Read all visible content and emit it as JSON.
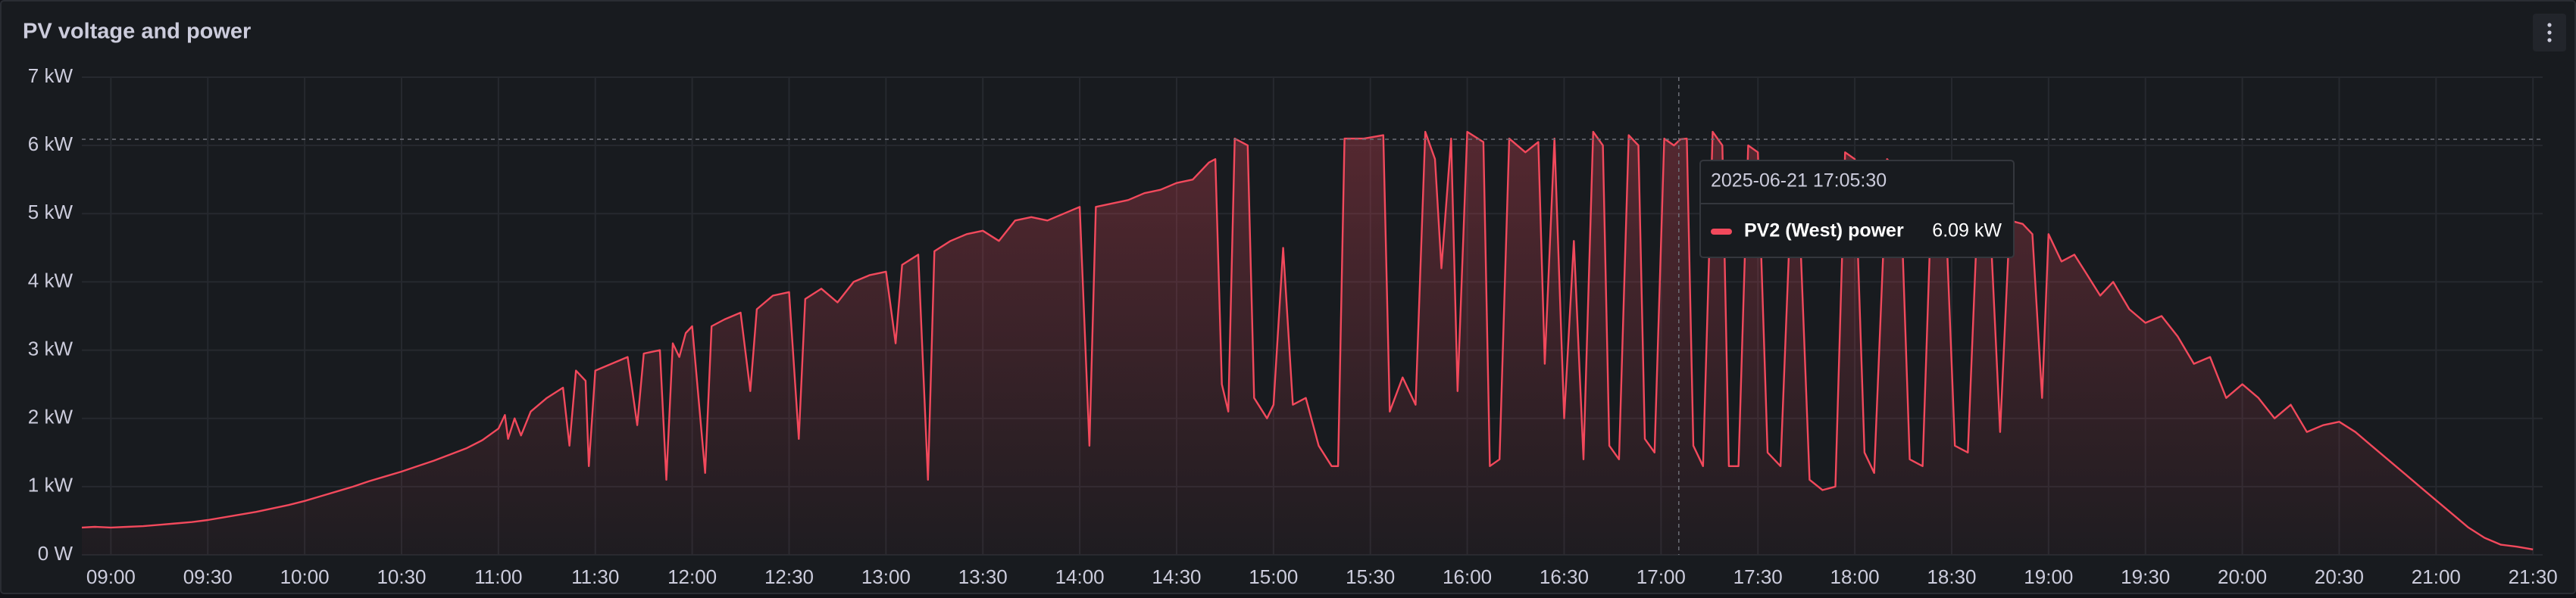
{
  "chart_data": {
    "type": "line",
    "title": "PV voltage and power",
    "x": [
      "08:51",
      "08:55",
      "09:00",
      "09:05",
      "09:10",
      "09:15",
      "09:20",
      "09:25",
      "09:30",
      "09:35",
      "09:40",
      "09:45",
      "09:50",
      "09:55",
      "10:00",
      "10:05",
      "10:10",
      "10:15",
      "10:20",
      "10:25",
      "10:30",
      "10:35",
      "10:40",
      "10:45",
      "10:50",
      "10:55",
      "11:00",
      "11:02",
      "11:03",
      "11:05",
      "11:07",
      "11:10",
      "11:15",
      "11:20",
      "11:22",
      "11:24",
      "11:27",
      "11:28",
      "11:30",
      "11:35",
      "11:40",
      "11:43",
      "11:45",
      "11:50",
      "11:52",
      "11:54",
      "11:56",
      "11:58",
      "12:00",
      "12:04",
      "12:06",
      "12:10",
      "12:15",
      "12:18",
      "12:20",
      "12:25",
      "12:30",
      "12:33",
      "12:35",
      "12:40",
      "12:45",
      "12:50",
      "12:55",
      "13:00",
      "13:03",
      "13:05",
      "13:10",
      "13:13",
      "13:15",
      "13:20",
      "13:25",
      "13:30",
      "13:35",
      "13:40",
      "13:45",
      "13:50",
      "13:55",
      "14:00",
      "14:03",
      "14:05",
      "14:10",
      "14:15",
      "14:20",
      "14:25",
      "14:30",
      "14:35",
      "14:40",
      "14:42",
      "14:44",
      "14:46",
      "14:48",
      "14:52",
      "14:54",
      "14:58",
      "15:00",
      "15:03",
      "15:06",
      "15:10",
      "15:14",
      "15:18",
      "15:20",
      "15:22",
      "15:28",
      "15:34",
      "15:36",
      "15:40",
      "15:44",
      "15:47",
      "15:50",
      "15:52",
      "15:55",
      "15:57",
      "16:00",
      "16:05",
      "16:07",
      "16:10",
      "16:13",
      "16:18",
      "16:22",
      "16:24",
      "16:27",
      "16:30",
      "16:33",
      "16:36",
      "16:39",
      "16:42",
      "16:44",
      "16:47",
      "16:50",
      "16:53",
      "16:55",
      "16:58",
      "17:01",
      "17:04",
      "17:06",
      "17:08",
      "17:10",
      "17:13",
      "17:16",
      "17:19",
      "17:21",
      "17:24",
      "17:27",
      "17:30",
      "17:33",
      "17:37",
      "17:40",
      "17:43",
      "17:46",
      "17:50",
      "17:54",
      "17:57",
      "18:00",
      "18:03",
      "18:06",
      "18:10",
      "18:14",
      "18:17",
      "18:21",
      "18:24",
      "18:28",
      "18:31",
      "18:35",
      "18:38",
      "18:42",
      "18:45",
      "18:48",
      "18:52",
      "18:55",
      "18:58",
      "19:00",
      "19:04",
      "19:08",
      "19:12",
      "19:16",
      "19:20",
      "19:25",
      "19:30",
      "19:35",
      "19:40",
      "19:45",
      "19:50",
      "19:55",
      "20:00",
      "20:05",
      "20:10",
      "20:15",
      "20:20",
      "20:25",
      "20:30",
      "20:35",
      "20:40",
      "20:45",
      "20:50",
      "20:55",
      "21:00",
      "21:05",
      "21:10",
      "21:15",
      "21:20",
      "21:25",
      "21:30"
    ],
    "series": [
      {
        "name": "PV2 (West) power",
        "color": "#f2495c",
        "values": [
          0.4,
          0.41,
          0.4,
          0.41,
          0.42,
          0.44,
          0.46,
          0.48,
          0.51,
          0.55,
          0.59,
          0.63,
          0.68,
          0.73,
          0.79,
          0.86,
          0.93,
          1.0,
          1.08,
          1.15,
          1.22,
          1.3,
          1.38,
          1.47,
          1.56,
          1.68,
          1.85,
          2.05,
          1.7,
          2.0,
          1.75,
          2.1,
          2.3,
          2.45,
          1.6,
          2.7,
          2.55,
          1.3,
          2.7,
          2.8,
          2.9,
          1.9,
          2.95,
          3.0,
          1.1,
          3.1,
          2.9,
          3.25,
          3.35,
          1.2,
          3.35,
          3.45,
          3.55,
          2.4,
          3.6,
          3.8,
          3.85,
          1.7,
          3.75,
          3.9,
          3.7,
          4.0,
          4.1,
          4.15,
          3.1,
          4.25,
          4.4,
          1.1,
          4.45,
          4.6,
          4.7,
          4.75,
          4.6,
          4.9,
          4.95,
          4.9,
          5.0,
          5.1,
          1.6,
          5.1,
          5.15,
          5.2,
          5.3,
          5.35,
          5.45,
          5.5,
          5.75,
          5.8,
          2.5,
          2.1,
          6.1,
          6.0,
          2.3,
          2.0,
          2.2,
          4.5,
          2.2,
          2.3,
          1.6,
          1.3,
          1.3,
          6.1,
          6.1,
          6.15,
          2.1,
          2.6,
          2.2,
          6.2,
          5.8,
          4.2,
          6.1,
          2.4,
          6.2,
          6.05,
          1.3,
          1.4,
          6.1,
          5.9,
          6.05,
          2.8,
          6.1,
          2.0,
          4.6,
          1.4,
          6.2,
          6.0,
          1.6,
          1.4,
          6.15,
          6.0,
          1.7,
          1.5,
          6.1,
          6.0,
          6.09,
          6.1,
          1.6,
          1.3,
          6.2,
          6.0,
          1.3,
          1.3,
          6.0,
          5.9,
          1.5,
          1.3,
          4.9,
          4.8,
          1.1,
          0.95,
          1.0,
          5.9,
          5.8,
          1.5,
          1.2,
          5.8,
          5.6,
          1.4,
          1.3,
          5.6,
          5.2,
          1.6,
          1.5,
          5.0,
          4.8,
          1.8,
          4.9,
          4.85,
          4.7,
          2.3,
          4.7,
          4.3,
          4.4,
          4.1,
          3.8,
          4.0,
          3.6,
          3.4,
          3.5,
          3.2,
          2.8,
          2.9,
          2.3,
          2.5,
          2.3,
          2.0,
          2.2,
          1.8,
          1.9,
          1.95,
          1.8,
          1.6,
          1.4,
          1.2,
          1.0,
          0.8,
          0.6,
          0.4,
          0.25,
          0.15,
          0.12,
          0.08
        ]
      }
    ],
    "xlim": [
      "08:51",
      "21:33"
    ],
    "xticks": [
      "09:00",
      "09:30",
      "10:00",
      "10:30",
      "11:00",
      "11:30",
      "12:00",
      "12:30",
      "13:00",
      "13:30",
      "14:00",
      "14:30",
      "15:00",
      "15:30",
      "16:00",
      "16:30",
      "17:00",
      "17:30",
      "18:00",
      "18:30",
      "19:00",
      "19:30",
      "20:00",
      "20:30",
      "21:00",
      "21:30"
    ],
    "ylim": [
      0,
      7
    ],
    "yticks": [
      {
        "value": 0,
        "label": "0 W"
      },
      {
        "value": 1,
        "label": "1 kW"
      },
      {
        "value": 2,
        "label": "2 kW"
      },
      {
        "value": 3,
        "label": "3 kW"
      },
      {
        "value": 4,
        "label": "4 kW"
      },
      {
        "value": 5,
        "label": "5 kW"
      },
      {
        "value": 6,
        "label": "6 kW"
      },
      {
        "value": 7,
        "label": "7 kW"
      }
    ],
    "grid": true,
    "tooltip": {
      "time": "2025-06-21 17:05:30",
      "value": 6.09,
      "value_label": "6.09 kW"
    }
  }
}
